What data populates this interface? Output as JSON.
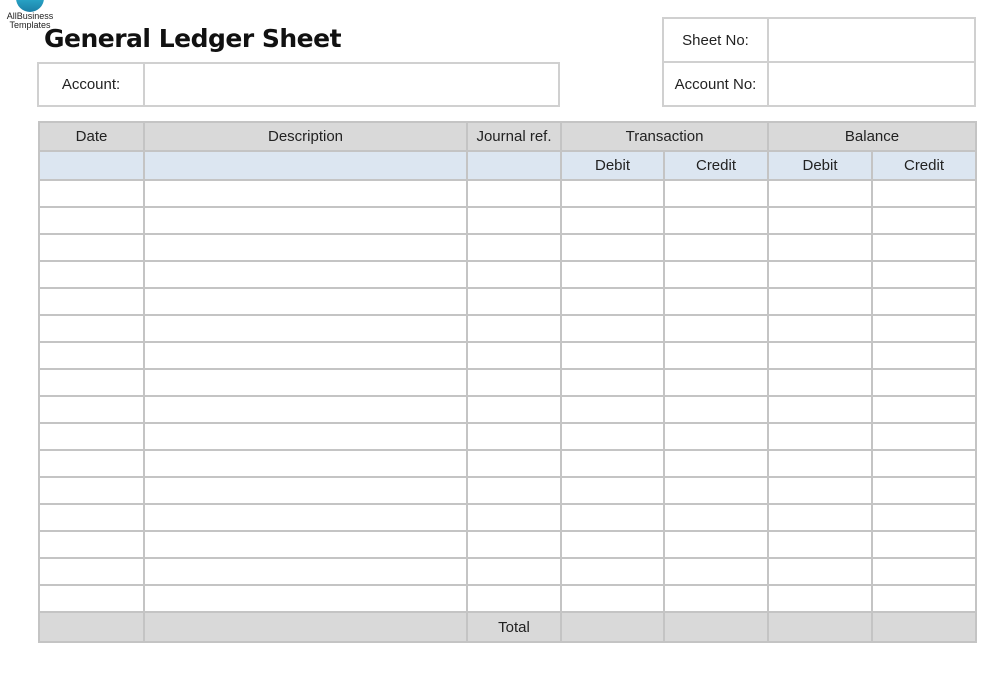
{
  "logo": {
    "line1": "AllBusiness",
    "line2": "Templates"
  },
  "title": "General Ledger Sheet",
  "account": {
    "label": "Account:",
    "value": ""
  },
  "sheet_no": {
    "label": "Sheet No:",
    "value": ""
  },
  "account_no": {
    "label": "Account No:",
    "value": ""
  },
  "table": {
    "headers": [
      "Date",
      "Description",
      "Journal ref.",
      "Transaction",
      "Balance"
    ],
    "subheaders": [
      "Debit",
      "Credit",
      "Debit",
      "Credit"
    ],
    "row_count": 16,
    "total_label": "Total"
  },
  "colors": {
    "header_bg": "#d9d9d9",
    "subheader_bg": "#dce6f1",
    "border": "#c4c4c4",
    "logo": "#2aa7c9"
  }
}
